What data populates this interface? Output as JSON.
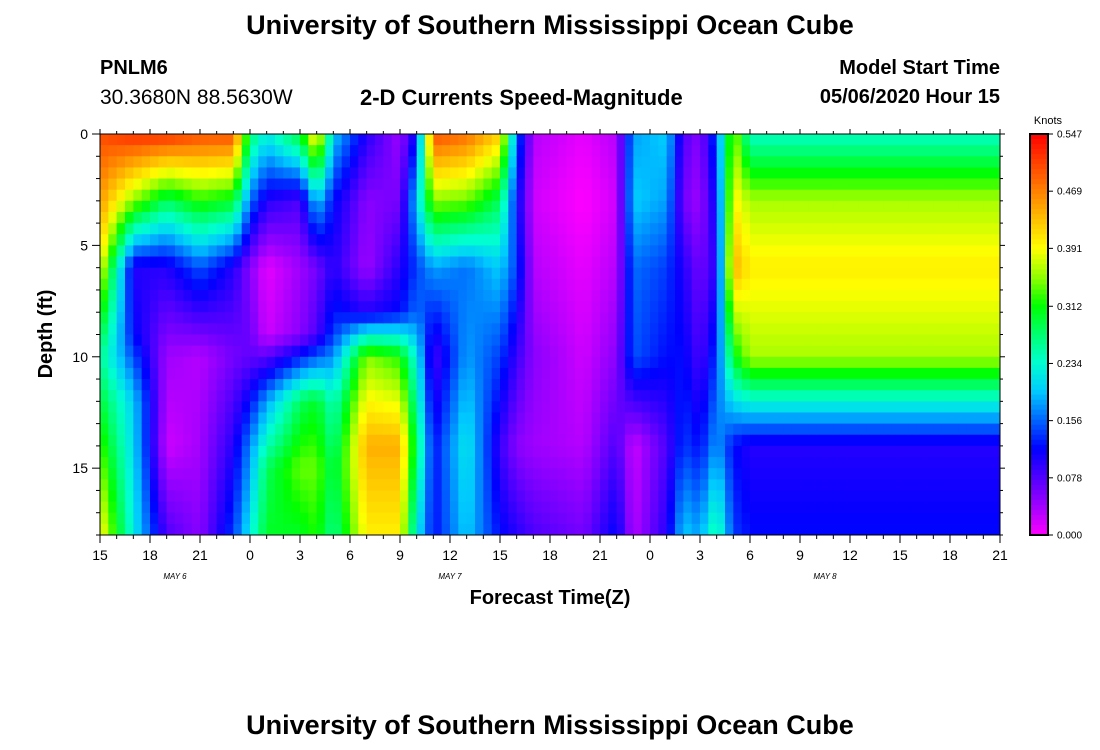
{
  "header": {
    "title": "University of Southern Mississippi Ocean Cube",
    "station_id": "PNLM6",
    "station_coords": "30.3680N 88.5630W",
    "plot_title": "2-D Currents Speed-Magnitude",
    "model_label": "Model Start Time",
    "model_start": "05/06/2020 Hour 15"
  },
  "footer": {
    "title": "University of Southern Mississippi Ocean Cube"
  },
  "colors": {
    "colormap": [
      "#ff00ff",
      "#a000ff",
      "#5000ff",
      "#0000ff",
      "#0064ff",
      "#00c8ff",
      "#00ffd0",
      "#00ff70",
      "#00ff00",
      "#90ff00",
      "#ffff00",
      "#ffc000",
      "#ff8000",
      "#ff4000",
      "#ff0000"
    ]
  },
  "chart_data": {
    "type": "heatmap",
    "xlabel": "Forecast Time(Z)",
    "ylabel": "Depth (ft)",
    "colorbar_label": "Knots",
    "x_ticks": [
      "15",
      "18",
      "21",
      "0",
      "3",
      "6",
      "9",
      "12",
      "15",
      "18",
      "21",
      "0",
      "3",
      "6",
      "9",
      "12",
      "15",
      "18",
      "21"
    ],
    "date_labels": [
      {
        "label": "MAY 6",
        "hour_index": 4.5
      },
      {
        "label": "MAY 7",
        "hour_index": 21
      },
      {
        "label": "MAY 8",
        "hour_index": 43.5
      }
    ],
    "x_hours_from_start": [
      0,
      54
    ],
    "y_ticks": [
      "0",
      "5",
      "10",
      "15"
    ],
    "ylim": [
      0,
      18
    ],
    "colorbar_ticks": [
      "0.000",
      "0.078",
      "0.156",
      "0.234",
      "0.312",
      "0.391",
      "0.469",
      "0.547"
    ],
    "vlim": [
      0,
      0.547
    ],
    "columns": [
      {
        "hour": 0,
        "profile": [
          [
            0,
            0.5
          ],
          [
            5,
            0.42
          ],
          [
            10,
            0.26
          ],
          [
            18,
            0.4
          ]
        ]
      },
      {
        "hour": 2,
        "profile": [
          [
            0,
            0.52
          ],
          [
            3,
            0.35
          ],
          [
            6,
            0.1
          ],
          [
            9,
            0.12
          ],
          [
            12,
            0.2
          ],
          [
            18,
            0.22
          ]
        ]
      },
      {
        "hour": 4,
        "profile": [
          [
            0,
            0.52
          ],
          [
            3,
            0.28
          ],
          [
            6,
            0.1
          ],
          [
            10,
            0.04
          ],
          [
            14,
            0.02
          ],
          [
            18,
            0.08
          ]
        ]
      },
      {
        "hour": 6,
        "profile": [
          [
            0,
            0.5
          ],
          [
            3,
            0.32
          ],
          [
            6,
            0.15
          ],
          [
            10,
            0.03
          ],
          [
            15,
            0.04
          ],
          [
            18,
            0.05
          ]
        ]
      },
      {
        "hour": 8,
        "profile": [
          [
            0,
            0.5
          ],
          [
            3,
            0.3
          ],
          [
            6,
            0.1
          ],
          [
            10,
            0.06
          ],
          [
            14,
            0.1
          ],
          [
            18,
            0.14
          ]
        ]
      },
      {
        "hour": 9,
        "profile": [
          [
            0,
            0.28
          ],
          [
            3,
            0.16
          ],
          [
            6,
            0.05
          ],
          [
            10,
            0.07
          ],
          [
            14,
            0.17
          ],
          [
            18,
            0.22
          ]
        ]
      },
      {
        "hour": 10,
        "profile": [
          [
            0,
            0.22
          ],
          [
            3,
            0.1
          ],
          [
            6,
            0.01
          ],
          [
            9,
            0.02
          ],
          [
            12,
            0.18
          ],
          [
            15,
            0.28
          ],
          [
            18,
            0.3
          ]
        ]
      },
      {
        "hour": 12,
        "profile": [
          [
            0,
            0.3
          ],
          [
            3,
            0.08
          ],
          [
            6,
            0.04
          ],
          [
            9,
            0.05
          ],
          [
            12,
            0.28
          ],
          [
            15,
            0.34
          ],
          [
            18,
            0.3
          ]
        ]
      },
      {
        "hour": 13,
        "profile": [
          [
            0,
            0.42
          ],
          [
            3,
            0.2
          ],
          [
            6,
            0.06
          ],
          [
            9,
            0.08
          ],
          [
            12,
            0.3
          ],
          [
            15,
            0.34
          ],
          [
            18,
            0.32
          ]
        ]
      },
      {
        "hour": 14,
        "profile": [
          [
            0,
            0.2
          ],
          [
            3,
            0.12
          ],
          [
            6,
            0.1
          ],
          [
            9,
            0.14
          ],
          [
            12,
            0.24
          ],
          [
            15,
            0.28
          ],
          [
            18,
            0.26
          ]
        ]
      },
      {
        "hour": 16,
        "profile": [
          [
            0,
            0.1
          ],
          [
            3,
            0.05
          ],
          [
            6,
            0.04
          ],
          [
            8,
            0.1
          ],
          [
            10,
            0.35
          ],
          [
            14,
            0.44
          ],
          [
            18,
            0.4
          ]
        ]
      },
      {
        "hour": 18,
        "profile": [
          [
            0,
            0.04
          ],
          [
            3,
            0.06
          ],
          [
            6,
            0.1
          ],
          [
            8,
            0.12
          ],
          [
            10,
            0.32
          ],
          [
            14,
            0.44
          ],
          [
            18,
            0.4
          ]
        ]
      },
      {
        "hour": 19,
        "profile": [
          [
            0,
            0.12
          ],
          [
            3,
            0.2
          ],
          [
            6,
            0.14
          ],
          [
            8,
            0.16
          ],
          [
            10,
            0.22
          ],
          [
            14,
            0.28
          ],
          [
            18,
            0.22
          ]
        ]
      },
      {
        "hour": 20,
        "profile": [
          [
            0,
            0.5
          ],
          [
            3,
            0.35
          ],
          [
            6,
            0.18
          ],
          [
            10,
            0.08
          ],
          [
            14,
            0.12
          ],
          [
            18,
            0.12
          ]
        ]
      },
      {
        "hour": 22,
        "profile": [
          [
            0,
            0.48
          ],
          [
            3,
            0.34
          ],
          [
            6,
            0.16
          ],
          [
            10,
            0.18
          ],
          [
            14,
            0.22
          ],
          [
            18,
            0.2
          ]
        ]
      },
      {
        "hour": 24,
        "profile": [
          [
            0,
            0.42
          ],
          [
            3,
            0.28
          ],
          [
            6,
            0.2
          ],
          [
            10,
            0.14
          ],
          [
            14,
            0.09
          ],
          [
            18,
            0.12
          ]
        ]
      },
      {
        "hour": 25,
        "profile": [
          [
            0,
            0.16
          ],
          [
            3,
            0.12
          ],
          [
            6,
            0.14
          ],
          [
            10,
            0.09
          ],
          [
            14,
            0.05
          ],
          [
            18,
            0.1
          ]
        ]
      },
      {
        "hour": 26,
        "profile": [
          [
            0,
            0.03
          ],
          [
            3,
            0.02
          ],
          [
            6,
            0.03
          ],
          [
            10,
            0.05
          ],
          [
            14,
            0.04
          ],
          [
            18,
            0.08
          ]
        ]
      },
      {
        "hour": 29,
        "profile": [
          [
            0,
            0.01
          ],
          [
            3,
            0.0
          ],
          [
            6,
            0.01
          ],
          [
            10,
            0.02
          ],
          [
            14,
            0.03
          ],
          [
            18,
            0.06
          ]
        ]
      },
      {
        "hour": 31,
        "profile": [
          [
            0,
            0.03
          ],
          [
            3,
            0.02
          ],
          [
            6,
            0.03
          ],
          [
            10,
            0.05
          ],
          [
            14,
            0.08
          ],
          [
            18,
            0.12
          ]
        ]
      },
      {
        "hour": 32,
        "profile": [
          [
            0,
            0.18
          ],
          [
            3,
            0.2
          ],
          [
            6,
            0.16
          ],
          [
            10,
            0.15
          ],
          [
            14,
            0.02
          ],
          [
            18,
            0.03
          ]
        ]
      },
      {
        "hour": 34,
        "profile": [
          [
            0,
            0.2
          ],
          [
            3,
            0.18
          ],
          [
            6,
            0.14
          ],
          [
            10,
            0.12
          ],
          [
            14,
            0.08
          ],
          [
            18,
            0.1
          ]
        ]
      },
      {
        "hour": 35,
        "profile": [
          [
            0,
            0.08
          ],
          [
            3,
            0.06
          ],
          [
            6,
            0.1
          ],
          [
            10,
            0.12
          ],
          [
            14,
            0.14
          ],
          [
            18,
            0.2
          ]
        ]
      },
      {
        "hour": 36,
        "profile": [
          [
            0,
            0.05
          ],
          [
            3,
            0.04
          ],
          [
            6,
            0.06
          ],
          [
            10,
            0.08
          ],
          [
            14,
            0.12
          ],
          [
            18,
            0.18
          ]
        ]
      },
      {
        "hour": 37,
        "profile": [
          [
            0,
            0.15
          ],
          [
            3,
            0.12
          ],
          [
            6,
            0.1
          ],
          [
            10,
            0.14
          ],
          [
            14,
            0.18
          ],
          [
            18,
            0.26
          ]
        ]
      },
      {
        "hour": 38,
        "profile": [
          [
            0,
            0.36
          ],
          [
            3,
            0.4
          ],
          [
            6,
            0.44
          ],
          [
            10,
            0.3
          ],
          [
            14,
            0.12
          ],
          [
            18,
            0.14
          ]
        ]
      },
      {
        "hour": 39,
        "profile": [
          [
            0,
            0.24
          ],
          [
            3,
            0.36
          ],
          [
            6,
            0.4
          ],
          [
            10,
            0.36
          ],
          [
            14,
            0.1
          ],
          [
            18,
            0.12
          ]
        ]
      }
    ]
  }
}
